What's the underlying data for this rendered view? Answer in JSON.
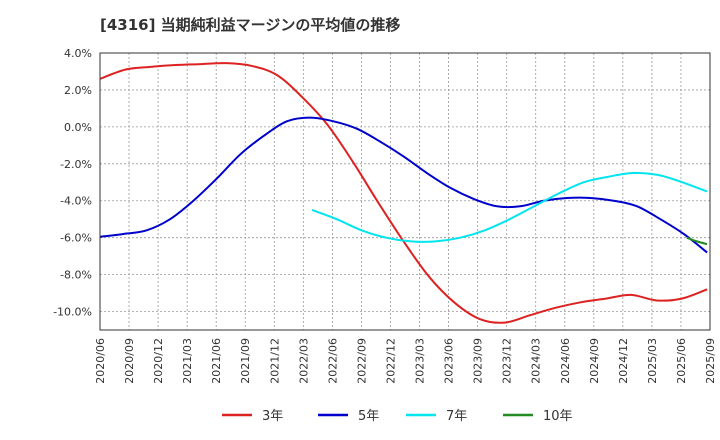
{
  "chart_data": {
    "type": "line",
    "title": "[4316]  当期純利益マージンの平均値の推移",
    "xlabel": "",
    "ylabel": "",
    "ylim": [
      -11.0,
      4.0
    ],
    "y_ticks": [
      4.0,
      2.0,
      0.0,
      -2.0,
      -4.0,
      -6.0,
      -8.0,
      -10.0
    ],
    "y_tick_labels": [
      "4.0%",
      "2.0%",
      "0.0%",
      "-2.0%",
      "-4.0%",
      "-6.0%",
      "-8.0%",
      "-10.0%"
    ],
    "x_ticks": [
      "2020/06",
      "2020/09",
      "2020/12",
      "2021/03",
      "2021/06",
      "2021/09",
      "2021/12",
      "2022/03",
      "2022/06",
      "2022/09",
      "2022/12",
      "2023/03",
      "2023/06",
      "2023/09",
      "2023/12",
      "2024/03",
      "2024/06",
      "2024/09",
      "2024/12",
      "2025/03",
      "2025/06",
      "2025/09"
    ],
    "grid": true,
    "legend_position": "bottom",
    "series": [
      {
        "name": "3年",
        "color": "#dd2222",
        "values": [
          2.6,
          3.1,
          3.25,
          3.35,
          3.4,
          3.45,
          3.3,
          2.8,
          1.6,
          0.1,
          -1.9,
          -4.1,
          -6.2,
          -8.1,
          -9.5,
          -10.4,
          -10.6,
          -10.2,
          -9.8,
          -9.5,
          -9.3,
          -9.1,
          -9.4,
          -9.3,
          -8.8
        ]
      },
      {
        "name": "5年",
        "color": "#0000cc",
        "values": [
          -5.95,
          -5.8,
          -5.6,
          -5.0,
          -4.0,
          -2.8,
          -1.5,
          -0.5,
          0.3,
          0.5,
          0.3,
          -0.1,
          -0.8,
          -1.6,
          -2.5,
          -3.3,
          -3.9,
          -4.3,
          -4.3,
          -4.0,
          -3.85,
          -3.85,
          -4.0,
          -4.3,
          -5.0,
          -5.8,
          -6.8
        ]
      },
      {
        "name": "7年",
        "color": "#00e5ee",
        "values": [
          -4.5,
          -5.0,
          -5.6,
          -6.0,
          -6.2,
          -6.2,
          -6.0,
          -5.6,
          -5.0,
          -4.3,
          -3.6,
          -3.0,
          -2.7,
          -2.5,
          -2.6,
          -3.0,
          -3.5
        ]
      },
      {
        "name": "10年",
        "color": "#228B22",
        "values": [
          -6.0,
          -6.2,
          -6.35
        ]
      }
    ]
  }
}
